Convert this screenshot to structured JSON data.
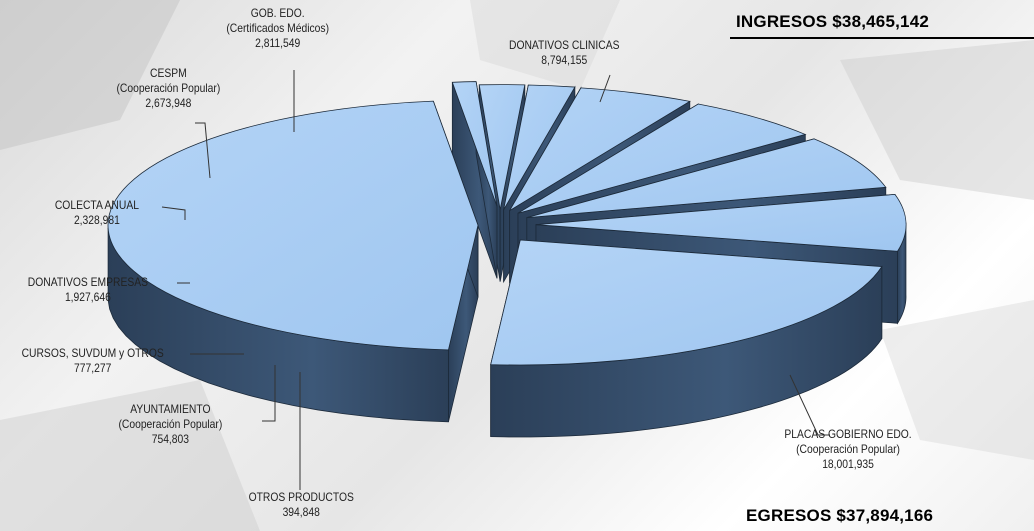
{
  "headline": {
    "ingresos": "INGRESOS  $38,465,142",
    "egresos": "EGRESOS  $37,894,166"
  },
  "chart_data": {
    "type": "pie",
    "title": "",
    "slices": [
      {
        "name": "PLACAS GOBIERNO EDO.",
        "sub": "(Cooperación Popular)",
        "value_label": "18,001,935",
        "value": 18001935
      },
      {
        "name": "OTROS PRODUCTOS",
        "sub": "",
        "value_label": "394,848",
        "value": 394848
      },
      {
        "name": "AYUNTAMIENTO",
        "sub": "(Cooperación Popular)",
        "value_label": "754,803",
        "value": 754803
      },
      {
        "name": "CURSOS, SUVDUM y OTROS",
        "sub": "",
        "value_label": "777,277",
        "value": 777277
      },
      {
        "name": "DONATIVOS EMPRESAS",
        "sub": "",
        "value_label": "1,927,646",
        "value": 1927646
      },
      {
        "name": "COLECTA ANUAL",
        "sub": "",
        "value_label": "2,328,981",
        "value": 2328981
      },
      {
        "name": "CESPM",
        "sub": "(Cooperación Popular)",
        "value_label": "2,673,948",
        "value": 2673948
      },
      {
        "name": "GOB. EDO.",
        "sub": "(Certificados Médicos)",
        "value_label": "2,811,549",
        "value": 2811549
      },
      {
        "name": "DONATIVOS CLINICAS",
        "sub": "",
        "value_label": "8,794,155",
        "value": 8794155
      }
    ],
    "colors": {
      "top": "#9fc6f0",
      "side": "#3d5878",
      "side_dark": "#2b3f58",
      "edge": "#1c2a3a"
    }
  }
}
